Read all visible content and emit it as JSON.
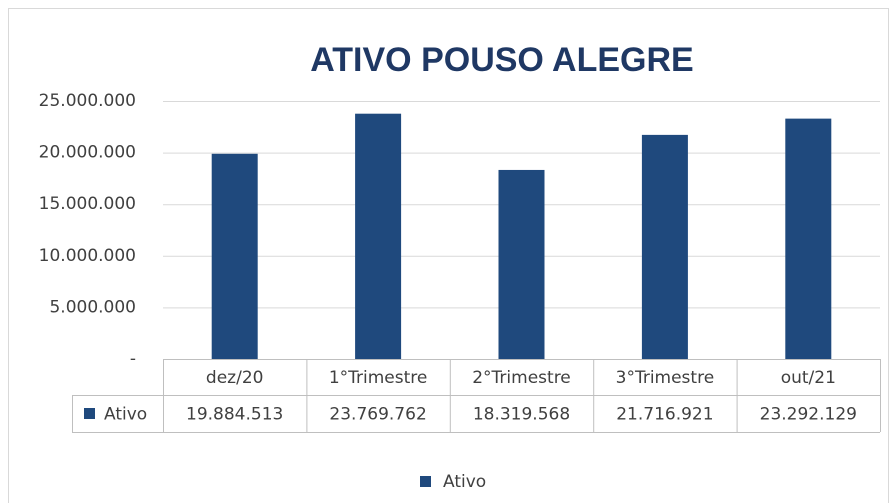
{
  "chart_data": {
    "type": "bar",
    "title": "ATIVO POUSO ALEGRE",
    "categories": [
      "dez/20",
      "1°Trimestre",
      "2°Trimestre",
      "3°Trimestre",
      "out/21"
    ],
    "series": [
      {
        "name": "Ativo",
        "color": "#1f497d",
        "values": [
          19884513,
          23769762,
          18319568,
          21716921,
          23292129
        ],
        "value_labels": [
          "19.884.513",
          "23.769.762",
          "18.319.568",
          "21.716.921",
          "23.292.129"
        ]
      }
    ],
    "ylim": [
      0,
      25000000
    ],
    "yticks": [
      {
        "value": 0,
        "label": "-"
      },
      {
        "value": 5000000,
        "label": "5.000.000"
      },
      {
        "value": 10000000,
        "label": "10.000.000"
      },
      {
        "value": 15000000,
        "label": "15.000.000"
      },
      {
        "value": 20000000,
        "label": "20.000.000"
      },
      {
        "value": 25000000,
        "label": "25.000.000"
      }
    ],
    "grid": true,
    "legend": "bottom"
  }
}
